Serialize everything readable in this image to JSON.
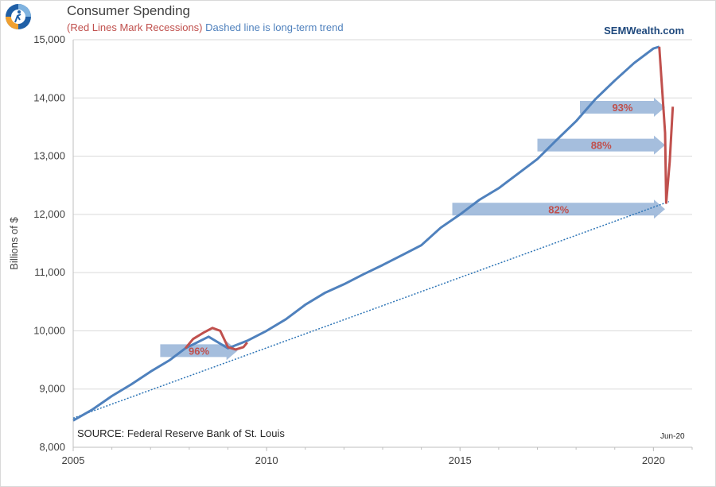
{
  "header": {
    "title": "Consumer Spending",
    "subtitle_red": "(Red Lines Mark Recessions)",
    "subtitle_blue": "Dashed line is long-term trend",
    "brand": "SEMWealth.com"
  },
  "footer": {
    "source": "SOURCE:  Federal Reserve Bank of St. Louis",
    "date_note": "Jun-20"
  },
  "colors": {
    "series": "#4f81bd",
    "recession": "#c0504d",
    "trend": "#2e75b6",
    "arrow": "#95b3d7"
  },
  "chart_data": {
    "type": "line",
    "ylabel": "Billions of $",
    "xlabel": "",
    "xlim": [
      2005,
      2021
    ],
    "ylim": [
      8000,
      15000
    ],
    "x_ticks": [
      2005,
      2010,
      2015,
      2020
    ],
    "y_ticks": [
      "8,000",
      "9,000",
      "10,000",
      "11,000",
      "12,000",
      "13,000",
      "14,000",
      "15,000"
    ],
    "grid": "horizontal",
    "series": [
      {
        "name": "",
        "points": [
          [
            2005.0,
            8460
          ],
          [
            2005.5,
            8650
          ],
          [
            2006.0,
            8880
          ],
          [
            2006.5,
            9080
          ],
          [
            2007.0,
            9300
          ],
          [
            2007.5,
            9500
          ],
          [
            2007.9,
            9700
          ],
          [
            2008.5,
            9900
          ],
          [
            2009.0,
            9700
          ],
          [
            2009.5,
            9830
          ],
          [
            2010.0,
            10000
          ],
          [
            2010.5,
            10200
          ],
          [
            2011.0,
            10450
          ],
          [
            2011.5,
            10650
          ],
          [
            2012.0,
            10800
          ],
          [
            2012.5,
            10970
          ],
          [
            2013.0,
            11130
          ],
          [
            2013.5,
            11300
          ],
          [
            2014.0,
            11470
          ],
          [
            2014.5,
            11770
          ],
          [
            2015.0,
            12000
          ],
          [
            2015.5,
            12250
          ],
          [
            2016.0,
            12450
          ],
          [
            2016.5,
            12700
          ],
          [
            2017.0,
            12950
          ],
          [
            2017.5,
            13280
          ],
          [
            2018.0,
            13600
          ],
          [
            2018.5,
            13980
          ],
          [
            2019.0,
            14300
          ],
          [
            2019.5,
            14600
          ],
          [
            2020.0,
            14850
          ],
          [
            2020.15,
            14880
          ]
        ]
      },
      {
        "name": "",
        "points": [
          [
            2007.9,
            9700
          ],
          [
            2008.1,
            9860
          ],
          [
            2008.4,
            9980
          ],
          [
            2008.6,
            10050
          ],
          [
            2008.8,
            10000
          ],
          [
            2009.0,
            9720
          ],
          [
            2009.2,
            9680
          ],
          [
            2009.4,
            9720
          ],
          [
            2009.5,
            9800
          ]
        ]
      },
      {
        "name": "",
        "points": [
          [
            2020.15,
            14880
          ],
          [
            2020.3,
            13400
          ],
          [
            2020.33,
            12200
          ],
          [
            2020.42,
            12900
          ],
          [
            2020.5,
            13850
          ]
        ]
      },
      {
        "name": "",
        "points": [
          [
            2005.0,
            8500
          ],
          [
            2020.4,
            12220
          ]
        ]
      }
    ],
    "annotations": [
      {
        "label": "96%",
        "x_start": 2007.25,
        "x_end": 2009.25,
        "y": 9660
      },
      {
        "label": "82%",
        "x_start": 2014.8,
        "x_end": 2020.3,
        "y": 12090
      },
      {
        "label": "88%",
        "x_start": 2017.0,
        "x_end": 2020.3,
        "y": 13190
      },
      {
        "label": "93%",
        "x_start": 2018.1,
        "x_end": 2020.3,
        "y": 13840
      }
    ]
  }
}
